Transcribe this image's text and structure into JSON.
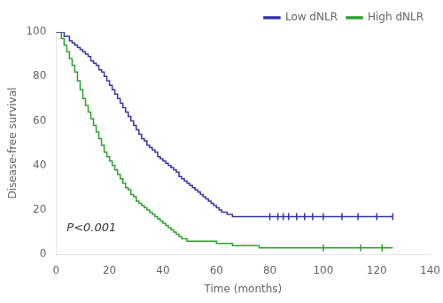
{
  "chart_data": {
    "type": "step",
    "xlabel": "Time (months)",
    "ylabel": "Disease-free survival",
    "xlim": [
      0,
      140
    ],
    "ylim": [
      0,
      100
    ],
    "xticks": [
      0,
      20,
      40,
      60,
      80,
      100,
      120,
      140
    ],
    "yticks": [
      0,
      20,
      40,
      60,
      80,
      100
    ],
    "grid": false,
    "legend": "upper right",
    "annotations": [
      {
        "text": "P<0.001",
        "x": 4,
        "y": 9
      }
    ],
    "series": [
      {
        "name": "Low dNLR",
        "color": "#3535a8",
        "x": [
          0,
          3,
          5,
          6,
          7,
          8,
          9,
          10,
          11,
          12,
          13,
          14,
          15,
          16,
          17,
          18,
          19,
          20,
          21,
          22,
          23,
          24,
          25,
          26,
          27,
          28,
          29,
          30,
          31,
          32,
          33,
          34,
          35,
          36,
          37,
          38,
          39,
          40,
          41,
          42,
          43,
          44,
          45,
          46,
          47,
          48,
          49,
          50,
          51,
          52,
          53,
          54,
          55,
          56,
          57,
          58,
          59,
          60,
          61,
          62,
          63,
          64,
          65,
          66,
          67,
          68,
          69,
          70,
          71,
          72,
          73,
          74,
          75,
          76,
          77,
          78,
          79,
          80,
          81,
          82,
          83,
          84,
          85,
          86,
          88,
          90,
          92,
          95,
          98,
          102,
          107,
          113,
          120,
          126
        ],
        "values": [
          100,
          98,
          96,
          95,
          94,
          93,
          92,
          91,
          90,
          89,
          87,
          86,
          85,
          83,
          82,
          80,
          78,
          76,
          74,
          72,
          70,
          68,
          66,
          64,
          62,
          60,
          58,
          56,
          54,
          52,
          51,
          49,
          48,
          47,
          46,
          44,
          43,
          42,
          41,
          40,
          39,
          38,
          37,
          35,
          34,
          33,
          32,
          31,
          30,
          29,
          28,
          27,
          26,
          25,
          24,
          23,
          22,
          21,
          20,
          19,
          19,
          18,
          18,
          17,
          17,
          17,
          17,
          17,
          17,
          17,
          17,
          17,
          17,
          17,
          17,
          17,
          17,
          17,
          17,
          17,
          17,
          17,
          17,
          17,
          17,
          17,
          17,
          17,
          17,
          17,
          17,
          17,
          17,
          17
        ],
        "censored_x": [
          80,
          83,
          85,
          87,
          90,
          93,
          96,
          100,
          107,
          113,
          120,
          126
        ],
        "censored_values": [
          17,
          17,
          17,
          17,
          17,
          17,
          17,
          17,
          17,
          17,
          17,
          17
        ]
      },
      {
        "name": "High dNLR",
        "color": "#2da02d",
        "x": [
          0,
          2,
          3,
          4,
          5,
          6,
          7,
          8,
          9,
          10,
          11,
          12,
          13,
          14,
          15,
          16,
          17,
          18,
          19,
          20,
          21,
          22,
          23,
          24,
          25,
          26,
          27,
          28,
          29,
          30,
          31,
          32,
          33,
          34,
          35,
          36,
          37,
          38,
          39,
          40,
          41,
          42,
          43,
          44,
          45,
          46,
          47,
          48,
          49,
          50,
          52,
          54,
          56,
          58,
          60,
          62,
          64,
          66,
          68,
          70,
          72,
          74,
          76,
          78,
          80,
          82,
          85,
          88,
          92,
          96,
          100,
          106,
          114,
          122,
          126
        ],
        "values": [
          100,
          97,
          94,
          91,
          88,
          85,
          82,
          78,
          74,
          70,
          67,
          64,
          61,
          58,
          55,
          52,
          49,
          46,
          44,
          42,
          40,
          38,
          36,
          34,
          32,
          30,
          29,
          27,
          26,
          24,
          23,
          22,
          21,
          20,
          19,
          18,
          17,
          16,
          15,
          14,
          13,
          12,
          11,
          10,
          9,
          8,
          7,
          7,
          6,
          6,
          6,
          6,
          6,
          6,
          5,
          5,
          5,
          4,
          4,
          4,
          4,
          4,
          3,
          3,
          3,
          3,
          3,
          3,
          3,
          3,
          3,
          3,
          3,
          3,
          3
        ],
        "censored_x": [
          100,
          114,
          122
        ],
        "censored_values": [
          3,
          3,
          3
        ]
      }
    ]
  }
}
